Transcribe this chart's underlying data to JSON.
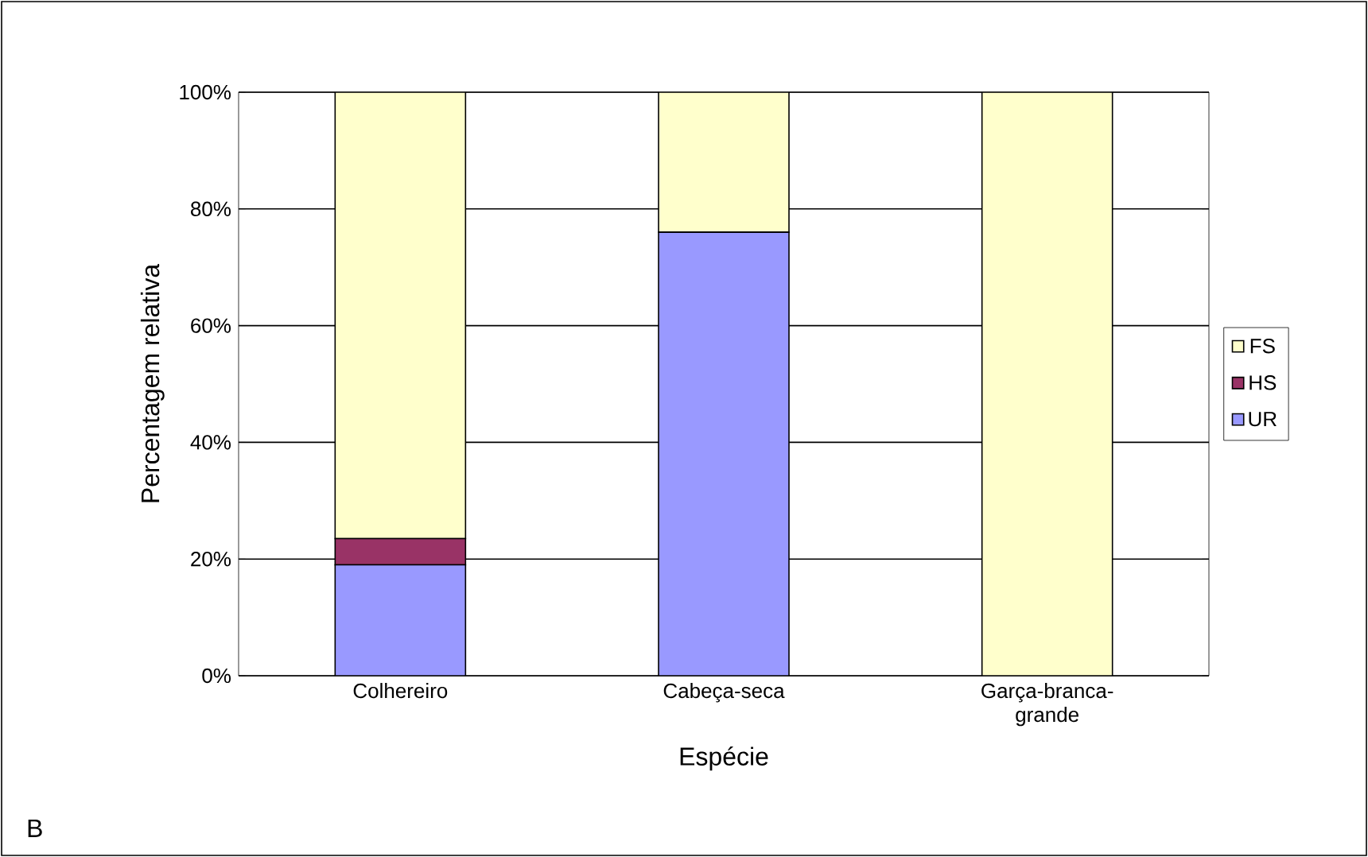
{
  "chart_data": {
    "type": "bar",
    "stacked": true,
    "xlabel": "Espécie",
    "ylabel": "Percentagem relativa",
    "categories": [
      "Colhereiro",
      "Cabeça-seca",
      "Garça-branca-grande"
    ],
    "series": [
      {
        "name": "UR",
        "color": "#9999ff",
        "values": [
          19,
          76,
          0
        ]
      },
      {
        "name": "HS",
        "color": "#993366",
        "values": [
          4.5,
          0,
          0
        ]
      },
      {
        "name": "FS",
        "color": "#ffffcc",
        "values": [
          76.5,
          24,
          100
        ]
      }
    ],
    "ylim": [
      0,
      100
    ],
    "yticks": [
      {
        "value": 0,
        "label": "0%"
      },
      {
        "value": 20,
        "label": "20%"
      },
      {
        "value": 40,
        "label": "40%"
      },
      {
        "value": 60,
        "label": "60%"
      },
      {
        "value": 80,
        "label": "80%"
      },
      {
        "value": 100,
        "label": "100%"
      }
    ],
    "grid": "y",
    "legend": "right",
    "annotations": [
      "B"
    ]
  }
}
